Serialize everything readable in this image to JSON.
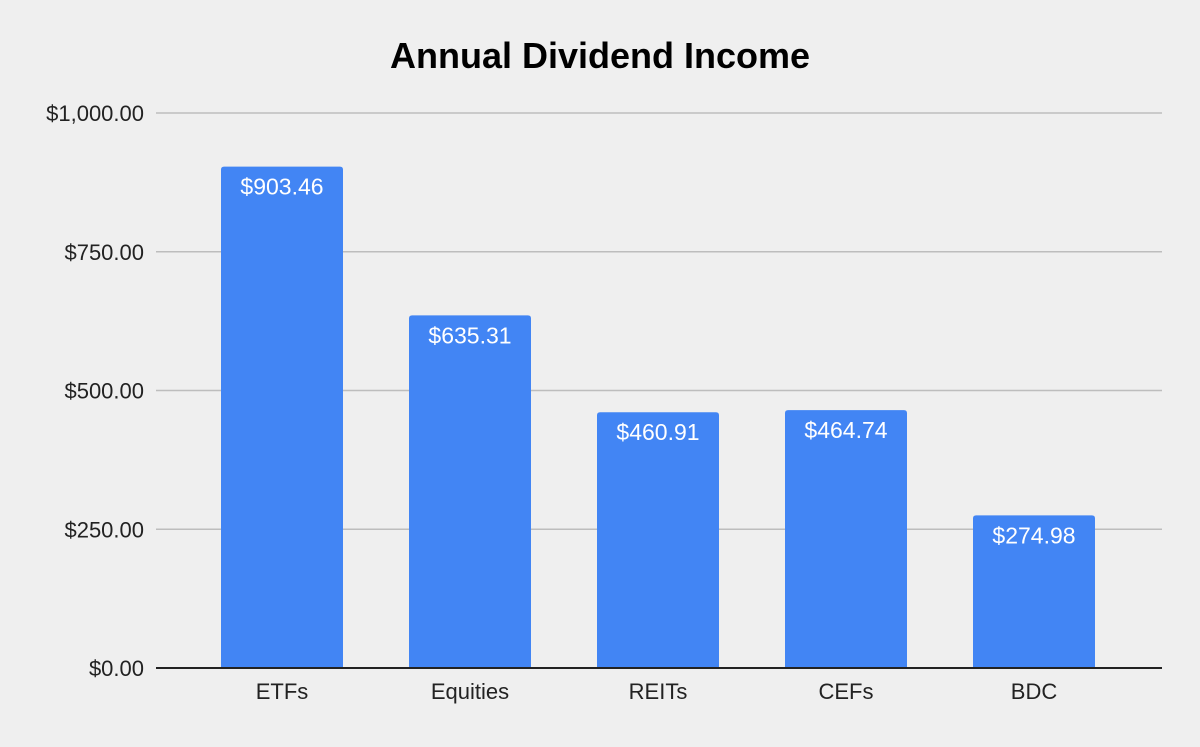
{
  "chart_data": {
    "type": "bar",
    "title": "Annual Dividend Income",
    "xlabel": "",
    "ylabel": "",
    "categories": [
      "ETFs",
      "Equities",
      "REITs",
      "CEFs",
      "BDC"
    ],
    "values": [
      903.46,
      635.31,
      460.91,
      464.74,
      274.98
    ],
    "data_labels": [
      "$903.46",
      "$635.31",
      "$460.91",
      "$464.74",
      "$274.98"
    ],
    "ylim": [
      0,
      1000
    ],
    "y_ticks": [
      0,
      250,
      500,
      750,
      1000
    ],
    "y_tick_labels": [
      "$0.00",
      "$250.00",
      "$500.00",
      "$750.00",
      "$1,000.00"
    ],
    "grid": true,
    "legend": "none",
    "colors": {
      "bar": "#4285f4",
      "grid": "#bdbdbd",
      "axis": "#222222",
      "background": "#efefef"
    }
  }
}
